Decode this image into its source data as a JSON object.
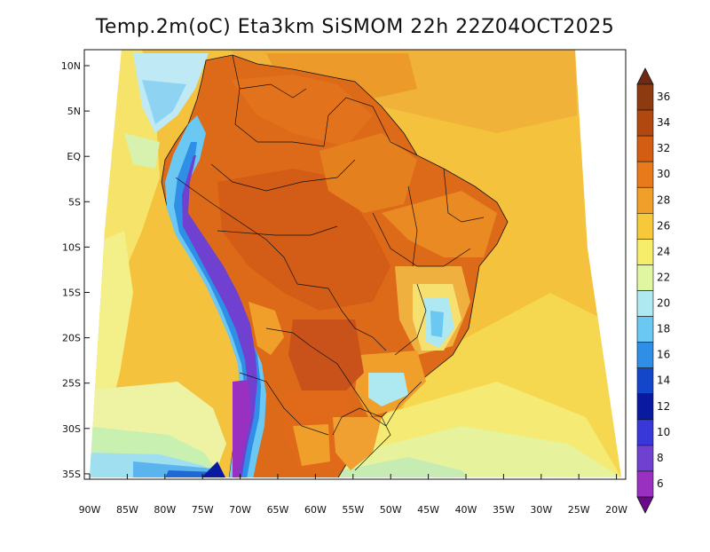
{
  "title": "Temp.2m(oC) Eta3km SiSMOM 22h 22Z04OCT2025",
  "lat_ticks": [
    "10N",
    "5N",
    "EQ",
    "5S",
    "10S",
    "15S",
    "20S",
    "25S",
    "30S",
    "35S"
  ],
  "lon_ticks": [
    "90W",
    "85W",
    "80W",
    "75W",
    "70W",
    "65W",
    "60W",
    "55W",
    "50W",
    "45W",
    "40W",
    "35W",
    "30W",
    "25W",
    "20W"
  ],
  "colorbar": {
    "labels": [
      "36",
      "34",
      "32",
      "30",
      "28",
      "26",
      "24",
      "22",
      "20",
      "18",
      "16",
      "14",
      "12",
      "10",
      "8",
      "6"
    ],
    "colors": [
      "#6e2a12",
      "#8e3a10",
      "#b04810",
      "#d35d12",
      "#e87a1c",
      "#f0a02a",
      "#f6c83a",
      "#f6ee6a",
      "#e0f6a0",
      "#aee8f0",
      "#6ac8f2",
      "#2f8ee6",
      "#1346c8",
      "#0a1aa0",
      "#3838d8",
      "#7040d0",
      "#9a30c0",
      "#6a0a8a"
    ]
  }
}
